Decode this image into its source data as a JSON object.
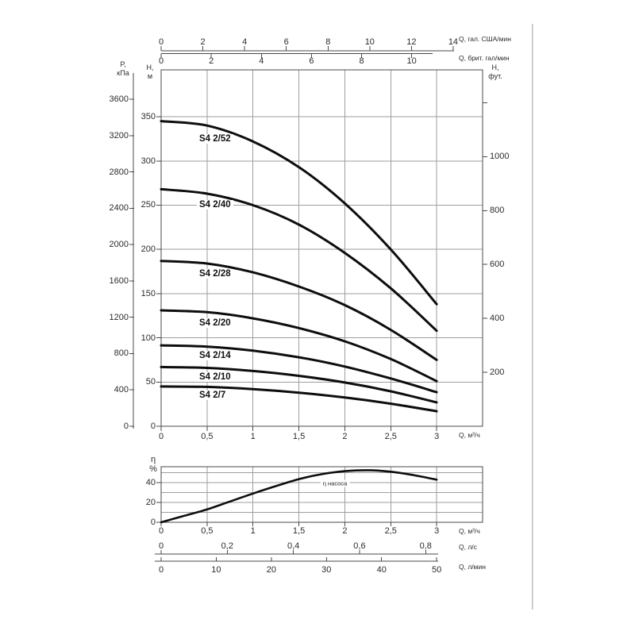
{
  "colors": {
    "curve": "#0d0d0d",
    "grid": "#9e9e9e",
    "frame": "#4a4a4a",
    "text": "#2b2b2b",
    "scan_edge": "#bdbdbd"
  },
  "chart_data": [
    {
      "id": "pump-head-curves",
      "type": "line",
      "xlabel": "Q, м³/ч",
      "xlim": [
        0,
        3.5
      ],
      "ylim_m": [
        0,
        403
      ],
      "x_m3h": [
        0,
        0.5,
        1,
        1.5,
        2,
        2.5,
        3
      ],
      "series": [
        {
          "name": "S4 2/52",
          "values_m": [
            345,
            340,
            322,
            293,
            252,
            200,
            138
          ]
        },
        {
          "name": "S4 2/40",
          "values_m": [
            268,
            263,
            250,
            228,
            196,
            156,
            108
          ]
        },
        {
          "name": "S4 2/28",
          "values_m": [
            187,
            184,
            174,
            158,
            137,
            109,
            75
          ]
        },
        {
          "name": "S4 2/20",
          "values_m": [
            131,
            129,
            122,
            111,
            96,
            76,
            51
          ]
        },
        {
          "name": "S4 2/14",
          "values_m": [
            91.5,
            90,
            85.5,
            78,
            67.5,
            54,
            38.5
          ]
        },
        {
          "name": "S4 2/10",
          "values_m": [
            67,
            66,
            62.5,
            57,
            49.5,
            39.5,
            27
          ]
        },
        {
          "name": "S4 2/7",
          "values_m": [
            45,
            44.5,
            42,
            38,
            32.5,
            25.5,
            17
          ]
        }
      ],
      "axes": {
        "top_usgpm": {
          "unit": "Q, гал. США/мин",
          "tick_labels": [
            "0",
            "2",
            "4",
            "6",
            "8",
            "10",
            "12",
            "14"
          ],
          "tick_values": [
            0,
            2,
            4,
            6,
            8,
            10,
            12,
            14
          ]
        },
        "top_impgpm": {
          "unit": "Q, брит. гал/мин",
          "tick_labels": [
            "0",
            "2",
            "4",
            "6",
            "8",
            "10"
          ],
          "tick_values": [
            0,
            2,
            4,
            6,
            8,
            10
          ]
        },
        "left_pressure_kpa": {
          "unit": "P,\nкПа",
          "tick_labels": [
            "3600",
            "3200",
            "2800",
            "2400",
            "2000",
            "1600",
            "1200",
            "800",
            "400",
            "0"
          ],
          "tick_values": [
            3600,
            3200,
            2800,
            2400,
            2000,
            1600,
            1200,
            800,
            400,
            0
          ]
        },
        "left_head_m": {
          "unit": "Н,\nм",
          "tick_labels": [
            "350",
            "300",
            "250",
            "200",
            "150",
            "100",
            "50",
            "0"
          ],
          "tick_values": [
            350,
            300,
            250,
            200,
            150,
            100,
            50,
            0
          ]
        },
        "right_head_ft": {
          "unit": "Н,\nфут.",
          "tick_labels": [
            "1000",
            "800",
            "600",
            "400",
            "200"
          ],
          "tick_values": [
            1000,
            800,
            600,
            400,
            200
          ],
          "unlabeled_tick_values": [
            1200
          ]
        },
        "bottom_m3h": {
          "unit": "Q, м³/ч",
          "tick_labels": [
            "0",
            "0,5",
            "1",
            "1,5",
            "2",
            "2,5",
            "3"
          ],
          "tick_values": [
            0,
            0.5,
            1,
            1.5,
            2,
            2.5,
            3
          ]
        }
      }
    },
    {
      "id": "pump-efficiency",
      "type": "line",
      "label": "η насоса",
      "xlim": [
        0,
        3.5
      ],
      "ylim_pct": [
        0,
        56
      ],
      "x_m3h": [
        0,
        0.25,
        0.5,
        0.75,
        1,
        1.25,
        1.5,
        1.75,
        2,
        2.25,
        2.5,
        2.75,
        3
      ],
      "values_pct": [
        0,
        6.5,
        13,
        21,
        29,
        36.5,
        43.5,
        48.5,
        51.5,
        52.5,
        51,
        47.5,
        43
      ],
      "axes": {
        "left_pct": {
          "unit": "η\n%",
          "tick_labels": [
            "40",
            "20",
            "0"
          ],
          "tick_values": [
            40,
            20,
            0
          ],
          "grid_values": [
            10,
            20,
            30,
            40,
            50
          ]
        },
        "bottom_m3h": {
          "unit": "Q, м³/ч",
          "tick_labels": [
            "0",
            "0,5",
            "1",
            "1,5",
            "2",
            "2,5",
            "3"
          ],
          "tick_values": [
            0,
            0.5,
            1,
            1.5,
            2,
            2.5,
            3
          ]
        }
      }
    }
  ],
  "rulers": {
    "liters_per_second": {
      "unit": "Q, л/с",
      "tick_labels": [
        "0",
        "0,2",
        "0,4",
        "0,6",
        "0,8"
      ],
      "tick_values": [
        0,
        0.2,
        0.4,
        0.6,
        0.8
      ]
    },
    "liters_per_minute": {
      "unit": "Q, л/мин",
      "tick_labels": [
        "0",
        "10",
        "20",
        "30",
        "40",
        "50"
      ],
      "tick_values": [
        0,
        10,
        20,
        30,
        40,
        50
      ]
    }
  }
}
